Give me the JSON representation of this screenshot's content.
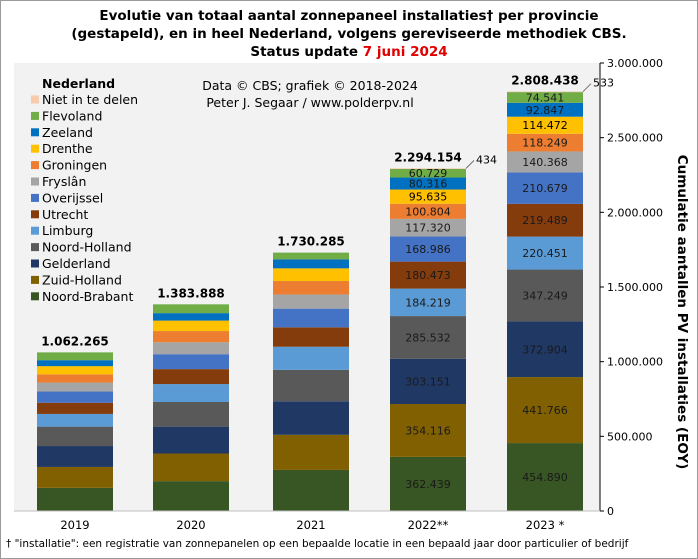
{
  "chart_data": {
    "type": "bar",
    "stacked": true,
    "title": {
      "line1": "Evolutie van totaal aantal zonnepaneel installaties† per provincie",
      "line2": "(gestapeld), en in heel Nederland, volgens gereviseerde methodiek CBS.",
      "line3_prefix": "Status update ",
      "line3_date": "7 juni 2024"
    },
    "credit": {
      "line1": "Data © CBS; grafiek © 2018-2024",
      "line2": "Peter J. Segaar / www.polderpv.nl"
    },
    "footnote": "† \"installatie\": een registratie van zonnepanelen op een bepaalde locatie in een bepaald jaar door particulier of bedrijf",
    "ylabel": "Cumulatie aantallen PV installaties (EOY)",
    "ylim": [
      0,
      3000000
    ],
    "yticks": [
      "0",
      "500.000",
      "1.000.000",
      "1.500.000",
      "2.000.000",
      "2.500.000",
      "3.000.000"
    ],
    "yaxis_position": "right",
    "grid": false,
    "legend_placement": "top-left",
    "legend_title": "Nederland",
    "categories": [
      "2019",
      "2020",
      "2021",
      "2022**",
      "2023 *"
    ],
    "totals": [
      1062265,
      1383888,
      1730285,
      2294154,
      2808438
    ],
    "total_labels": [
      "1.062.265",
      "1.383.888",
      "1.730.285",
      "2.294.154",
      "2.808.438"
    ],
    "series": [
      {
        "name": "Noord-Brabant",
        "color": "#375623",
        "values": [
          155000,
          200000,
          275000,
          362439,
          454890
        ],
        "labels": [
          "",
          "",
          "",
          "362.439",
          "454.890"
        ]
      },
      {
        "name": "Zuid-Holland",
        "color": "#806000",
        "values": [
          140000,
          185000,
          235000,
          354116,
          441766
        ],
        "labels": [
          "",
          "",
          "",
          "354.116",
          "441.766"
        ]
      },
      {
        "name": "Gelderland",
        "color": "#203864",
        "values": [
          140000,
          180000,
          225000,
          303151,
          372904
        ],
        "labels": [
          "",
          "",
          "",
          "303.151",
          "372.904"
        ]
      },
      {
        "name": "Noord-Holland",
        "color": "#595959",
        "values": [
          130000,
          165000,
          210000,
          285532,
          347249
        ],
        "labels": [
          "",
          "",
          "",
          "285.532",
          "347.249"
        ]
      },
      {
        "name": "Limburg",
        "color": "#5b9bd5",
        "values": [
          85000,
          120000,
          155000,
          184219,
          220451
        ],
        "labels": [
          "",
          "",
          "",
          "184.219",
          "220.451"
        ]
      },
      {
        "name": "Utrecht",
        "color": "#843c0c",
        "values": [
          75000,
          100000,
          130000,
          180473,
          219489
        ],
        "labels": [
          "",
          "",
          "",
          "180.473",
          "219.489"
        ]
      },
      {
        "name": "Overijssel",
        "color": "#4472c4",
        "values": [
          75000,
          100000,
          125000,
          168986,
          210679
        ],
        "labels": [
          "",
          "",
          "",
          "168.986",
          "210.679"
        ]
      },
      {
        "name": "Fryslân",
        "color": "#a5a5a5",
        "values": [
          60000,
          80000,
          95000,
          117320,
          140368
        ],
        "labels": [
          "",
          "",
          "",
          "117.320",
          "140.368"
        ]
      },
      {
        "name": "Groningen",
        "color": "#ed7d31",
        "values": [
          55000,
          75000,
          90000,
          100804,
          118249
        ],
        "labels": [
          "",
          "",
          "",
          "100.804",
          "118.249"
        ]
      },
      {
        "name": "Drenthe",
        "color": "#ffc000",
        "values": [
          55000,
          70000,
          85000,
          95635,
          114472
        ],
        "labels": [
          "",
          "",
          "",
          "95.635",
          "114.472"
        ]
      },
      {
        "name": "Zeeland",
        "color": "#0070c0",
        "values": [
          40000,
          50000,
          60000,
          80316,
          92847
        ],
        "labels": [
          "",
          "",
          "",
          "80.316",
          "92.847"
        ]
      },
      {
        "name": "Flevoland",
        "color": "#70ad47",
        "values": [
          52265,
          58888,
          45285,
          60729,
          74541
        ],
        "labels": [
          "",
          "",
          "",
          "60.729",
          "74.541"
        ]
      },
      {
        "name": "Niet in te delen",
        "color": "#f8cbad",
        "values": [
          0,
          0,
          0,
          434,
          533
        ],
        "labels": [
          "",
          "",
          "",
          "434",
          "533"
        ]
      }
    ]
  }
}
